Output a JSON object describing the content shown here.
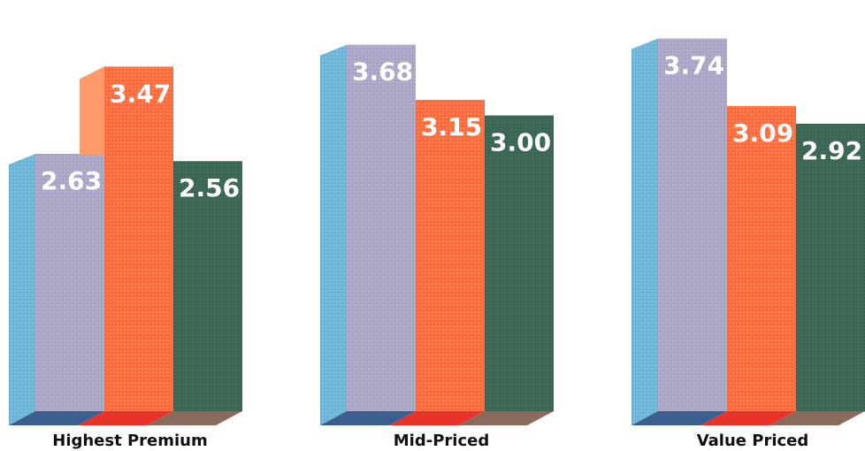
{
  "chart_data": {
    "type": "bar",
    "categories": [
      "Highest Premium",
      "Mid-Priced",
      "Value Priced"
    ],
    "series": [
      {
        "values": [
          2.63,
          3.68,
          3.74
        ],
        "labels": [
          "2.63",
          "3.68",
          "3.74"
        ],
        "color": "#a9a3c5"
      },
      {
        "values": [
          3.47,
          3.15,
          3.09
        ],
        "labels": [
          "3.47",
          "3.15",
          "3.09"
        ],
        "color": "#ff6a3a"
      },
      {
        "values": [
          2.56,
          3.0,
          2.92
        ],
        "labels": [
          "2.56",
          "3.00",
          "2.92"
        ],
        "color": "#3e6a58"
      }
    ],
    "colors": {
      "side": "#6ab4d8",
      "floor_blue": "#3a5f8e",
      "floor_red": "#e8332a",
      "floor_brown": "#8a6a5a",
      "top_light": "#ff9a6a"
    },
    "ylim": [
      0,
      4
    ]
  }
}
